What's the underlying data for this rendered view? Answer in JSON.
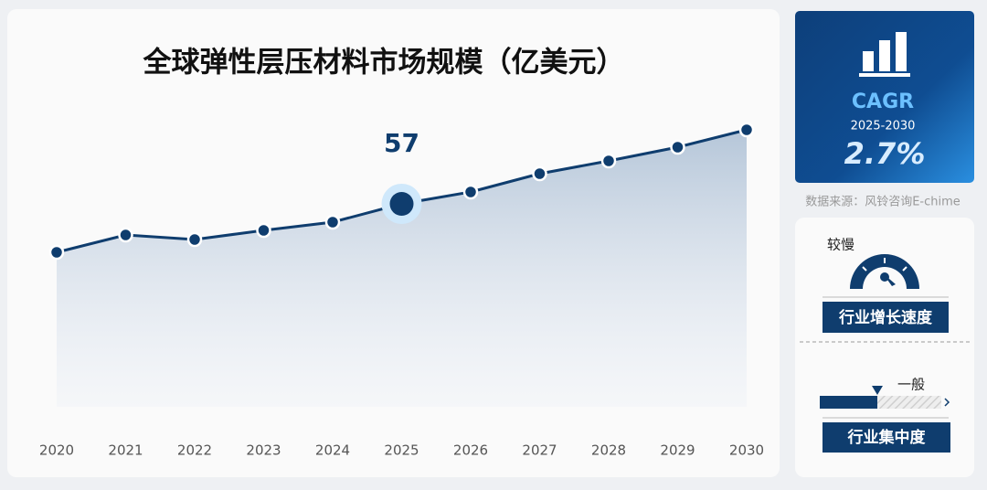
{
  "chart_data": {
    "type": "line",
    "title": "全球弹性层压材料市场规模（亿美元）",
    "categories": [
      "2020",
      "2021",
      "2022",
      "2023",
      "2024",
      "2025",
      "2026",
      "2027",
      "2028",
      "2029",
      "2030"
    ],
    "values": [
      51.7,
      53.6,
      53.1,
      54.1,
      55.0,
      57,
      58.3,
      60.3,
      61.7,
      63.2,
      65.1
    ],
    "color": "#0f3d6e",
    "highlight": "2025"
  },
  "summary": {
    "metric": "CAGR",
    "period": "2025-2030",
    "value": "2.7%"
  },
  "source": "数据来源：风铃咨询E-chime",
  "indicators": [
    {
      "level": "较慢",
      "label": "行业增长速度"
    },
    {
      "level": "一般",
      "label": "行业集中度"
    }
  ]
}
